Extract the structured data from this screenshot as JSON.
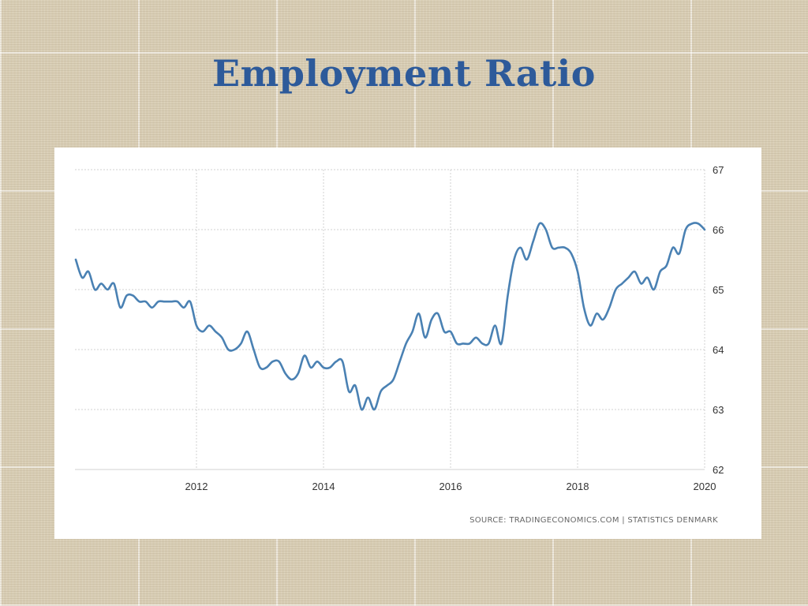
{
  "slide": {
    "title": "Employment Ratio"
  },
  "source_text": "SOURCE: TRADINGECONOMICS.COM  |  STATISTICS DENMARK",
  "colors": {
    "line": "#4a81b3",
    "grid": "#d0d0d0",
    "title": "#2d5a9a"
  },
  "chart_data": {
    "type": "line",
    "title": "",
    "xlabel": "",
    "ylabel": "",
    "xlim": [
      2010.1,
      2020.0
    ],
    "ylim": [
      62,
      67
    ],
    "x_ticks": [
      2012,
      2014,
      2016,
      2018,
      2020
    ],
    "y_ticks": [
      62,
      63,
      64,
      65,
      66,
      67
    ],
    "y_axis_side": "right",
    "grid": true,
    "legend": "none",
    "series": [
      {
        "points": [
          [
            2010.1,
            65.5
          ],
          [
            2010.2,
            65.2
          ],
          [
            2010.3,
            65.3
          ],
          [
            2010.4,
            65.0
          ],
          [
            2010.5,
            65.1
          ],
          [
            2010.6,
            65.0
          ],
          [
            2010.7,
            65.1
          ],
          [
            2010.8,
            64.7
          ],
          [
            2010.9,
            64.9
          ],
          [
            2011.0,
            64.9
          ],
          [
            2011.1,
            64.8
          ],
          [
            2011.2,
            64.8
          ],
          [
            2011.3,
            64.7
          ],
          [
            2011.4,
            64.8
          ],
          [
            2011.5,
            64.8
          ],
          [
            2011.6,
            64.8
          ],
          [
            2011.7,
            64.8
          ],
          [
            2011.8,
            64.7
          ],
          [
            2011.9,
            64.8
          ],
          [
            2012.0,
            64.4
          ],
          [
            2012.1,
            64.3
          ],
          [
            2012.2,
            64.4
          ],
          [
            2012.3,
            64.3
          ],
          [
            2012.4,
            64.2
          ],
          [
            2012.5,
            64.0
          ],
          [
            2012.6,
            64.0
          ],
          [
            2012.7,
            64.1
          ],
          [
            2012.8,
            64.3
          ],
          [
            2012.9,
            64.0
          ],
          [
            2013.0,
            63.7
          ],
          [
            2013.1,
            63.7
          ],
          [
            2013.2,
            63.8
          ],
          [
            2013.3,
            63.8
          ],
          [
            2013.4,
            63.6
          ],
          [
            2013.5,
            63.5
          ],
          [
            2013.6,
            63.6
          ],
          [
            2013.7,
            63.9
          ],
          [
            2013.8,
            63.7
          ],
          [
            2013.9,
            63.8
          ],
          [
            2014.0,
            63.7
          ],
          [
            2014.1,
            63.7
          ],
          [
            2014.2,
            63.8
          ],
          [
            2014.3,
            63.8
          ],
          [
            2014.4,
            63.3
          ],
          [
            2014.5,
            63.4
          ],
          [
            2014.6,
            63.0
          ],
          [
            2014.7,
            63.2
          ],
          [
            2014.8,
            63.0
          ],
          [
            2014.9,
            63.3
          ],
          [
            2015.0,
            63.4
          ],
          [
            2015.1,
            63.5
          ],
          [
            2015.2,
            63.8
          ],
          [
            2015.3,
            64.1
          ],
          [
            2015.4,
            64.3
          ],
          [
            2015.5,
            64.6
          ],
          [
            2015.6,
            64.2
          ],
          [
            2015.7,
            64.5
          ],
          [
            2015.8,
            64.6
          ],
          [
            2015.9,
            64.3
          ],
          [
            2016.0,
            64.3
          ],
          [
            2016.1,
            64.1
          ],
          [
            2016.2,
            64.1
          ],
          [
            2016.3,
            64.1
          ],
          [
            2016.4,
            64.2
          ],
          [
            2016.5,
            64.1
          ],
          [
            2016.6,
            64.1
          ],
          [
            2016.7,
            64.4
          ],
          [
            2016.8,
            64.1
          ],
          [
            2016.9,
            64.9
          ],
          [
            2017.0,
            65.5
          ],
          [
            2017.1,
            65.7
          ],
          [
            2017.2,
            65.5
          ],
          [
            2017.3,
            65.8
          ],
          [
            2017.4,
            66.1
          ],
          [
            2017.5,
            66.0
          ],
          [
            2017.6,
            65.7
          ],
          [
            2017.7,
            65.7
          ],
          [
            2017.8,
            65.7
          ],
          [
            2017.9,
            65.6
          ],
          [
            2018.0,
            65.3
          ],
          [
            2018.1,
            64.7
          ],
          [
            2018.2,
            64.4
          ],
          [
            2018.3,
            64.6
          ],
          [
            2018.4,
            64.5
          ],
          [
            2018.5,
            64.7
          ],
          [
            2018.6,
            65.0
          ],
          [
            2018.7,
            65.1
          ],
          [
            2018.8,
            65.2
          ],
          [
            2018.9,
            65.3
          ],
          [
            2019.0,
            65.1
          ],
          [
            2019.1,
            65.2
          ],
          [
            2019.2,
            65.0
          ],
          [
            2019.3,
            65.3
          ],
          [
            2019.4,
            65.4
          ],
          [
            2019.5,
            65.7
          ],
          [
            2019.6,
            65.6
          ],
          [
            2019.7,
            66.0
          ],
          [
            2019.8,
            66.1
          ],
          [
            2019.9,
            66.1
          ],
          [
            2020.0,
            66.0
          ]
        ]
      }
    ]
  }
}
